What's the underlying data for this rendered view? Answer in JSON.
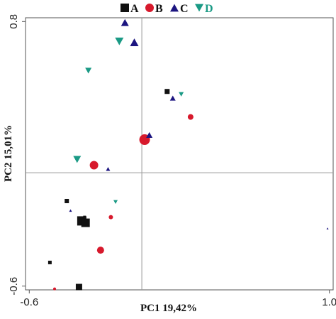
{
  "chart_data": {
    "type": "scatter",
    "xlabel": "PC1  19,42%",
    "ylabel": "PC2  15,01%",
    "xlim": [
      -0.62,
      1.02
    ],
    "ylim": [
      -0.62,
      0.82
    ],
    "xticks": [
      {
        "value": -0.6,
        "label": "-0.6"
      },
      {
        "value": 1.0,
        "label": "1.0"
      }
    ],
    "yticks": [
      {
        "value": 0.8,
        "label": "0.8"
      },
      {
        "value": -0.6,
        "label": "-0.6"
      }
    ],
    "reference_lines": {
      "x": 0.0,
      "y": 0.0
    },
    "grid": false,
    "legend_position": "top",
    "series": [
      {
        "name": "A",
        "marker": "square",
        "color": "#111111",
        "points": [
          {
            "x": 0.135,
            "y": 0.43,
            "size": 7
          },
          {
            "x": -0.4,
            "y": -0.15,
            "size": 6
          },
          {
            "x": -0.32,
            "y": -0.255,
            "size": 13
          },
          {
            "x": -0.3,
            "y": -0.265,
            "size": 12
          },
          {
            "x": -0.305,
            "y": -0.235,
            "size": 4
          },
          {
            "x": -0.49,
            "y": -0.475,
            "size": 5
          },
          {
            "x": -0.335,
            "y": -0.605,
            "size": 9
          }
        ]
      },
      {
        "name": "B",
        "marker": "circle",
        "color": "#d7192c",
        "points": [
          {
            "x": 0.26,
            "y": 0.295,
            "size": 8
          },
          {
            "x": 0.015,
            "y": 0.175,
            "size": 15
          },
          {
            "x": -0.255,
            "y": 0.04,
            "size": 12
          },
          {
            "x": -0.165,
            "y": -0.235,
            "size": 6
          },
          {
            "x": -0.22,
            "y": -0.41,
            "size": 10
          },
          {
            "x": -0.465,
            "y": -0.615,
            "size": 4
          }
        ]
      },
      {
        "name": "C",
        "marker": "triangle-up",
        "color": "#1c1580",
        "points": [
          {
            "x": -0.09,
            "y": 0.795,
            "size": 11
          },
          {
            "x": -0.04,
            "y": 0.69,
            "size": 12
          },
          {
            "x": 0.165,
            "y": 0.395,
            "size": 8
          },
          {
            "x": 0.04,
            "y": 0.2,
            "size": 9
          },
          {
            "x": -0.18,
            "y": 0.02,
            "size": 6
          },
          {
            "x": -0.38,
            "y": -0.2,
            "size": 4
          },
          {
            "x": 0.99,
            "y": -0.295,
            "size": 3
          }
        ]
      },
      {
        "name": "D",
        "marker": "triangle-down",
        "color": "#1a9a85",
        "points": [
          {
            "x": -0.12,
            "y": 0.695,
            "size": 12
          },
          {
            "x": -0.285,
            "y": 0.54,
            "size": 9
          },
          {
            "x": 0.21,
            "y": 0.415,
            "size": 7
          },
          {
            "x": -0.345,
            "y": 0.07,
            "size": 11
          },
          {
            "x": -0.14,
            "y": -0.155,
            "size": 6
          }
        ]
      }
    ]
  }
}
